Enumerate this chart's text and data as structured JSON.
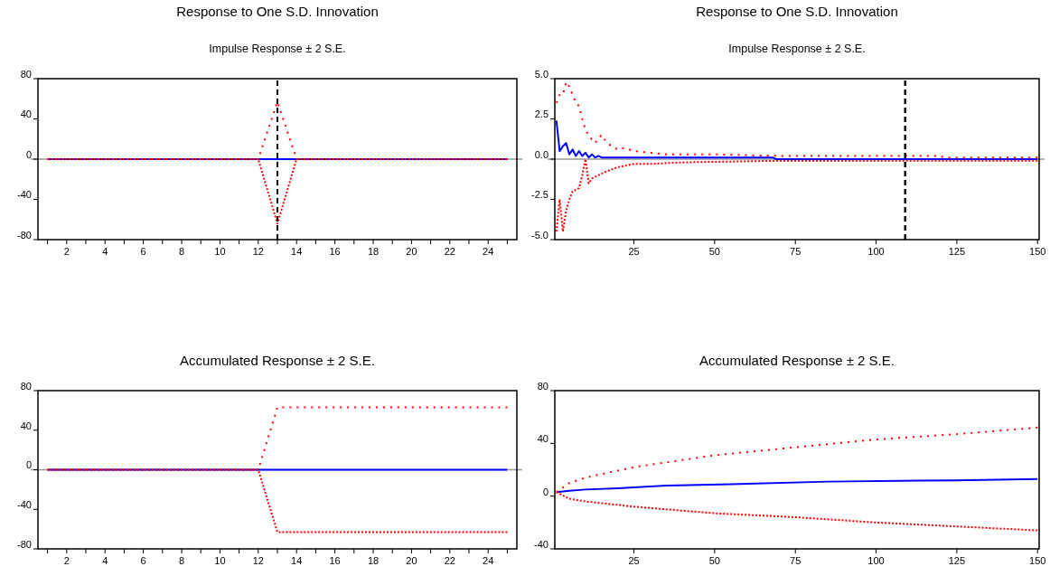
{
  "chart_data": [
    {
      "type": "line",
      "title": "Response to One S.D. Innovation",
      "subtitle": "Impulse Response ± 2 S.E.",
      "x": [
        1,
        2,
        3,
        4,
        5,
        6,
        7,
        8,
        9,
        10,
        11,
        12,
        13,
        14,
        15,
        16,
        17,
        18,
        19,
        20,
        21,
        22,
        23,
        24,
        25
      ],
      "xlim": [
        0.5,
        25.5
      ],
      "xticks": [
        {
          "value": 1,
          "label": null
        },
        2,
        {
          "value": 3,
          "label": null
        },
        4,
        {
          "value": 5,
          "label": null
        },
        6,
        {
          "value": 7,
          "label": null
        },
        8,
        {
          "value": 9,
          "label": null
        },
        10,
        {
          "value": 11,
          "label": null
        },
        12,
        {
          "value": 13,
          "label": null
        },
        14,
        {
          "value": 15,
          "label": null
        },
        16,
        {
          "value": 17,
          "label": null
        },
        18,
        {
          "value": 19,
          "label": null
        },
        20,
        {
          "value": 21,
          "label": null
        },
        22,
        {
          "value": 23,
          "label": null
        },
        24,
        {
          "value": 25,
          "label": null
        }
      ],
      "ylim": [
        -80,
        80
      ],
      "yticks": [
        -80,
        -40,
        0,
        40,
        80
      ],
      "series": [
        {
          "color": "#ff0000",
          "line_style": "dotted",
          "values": [
            0,
            0,
            0,
            0,
            0,
            0,
            0,
            0,
            0,
            0,
            0,
            0,
            57,
            0,
            0,
            0,
            0,
            0,
            0,
            0,
            0,
            0,
            0,
            0,
            0
          ]
        },
        {
          "color": "#ff0000",
          "line_style": "dotted",
          "values": [
            0,
            0,
            0,
            0,
            0,
            0,
            0,
            0,
            0,
            0,
            0,
            0,
            -64,
            0,
            0,
            0,
            0,
            0,
            0,
            0,
            0,
            0,
            0,
            0,
            0
          ]
        },
        {
          "color": "#0000ff",
          "line_style": "solid",
          "values": [
            0,
            0,
            0,
            0,
            0,
            0,
            0,
            0,
            0,
            0,
            0,
            0,
            0,
            0,
            0,
            0,
            0,
            0,
            0,
            0,
            0,
            0,
            0,
            0,
            0
          ]
        }
      ],
      "ref_lines": [
        {
          "axis": "y",
          "value": 0,
          "color": "#999999",
          "line_style": "solid"
        },
        {
          "axis": "x",
          "value": 13,
          "color": "#000000",
          "line_style": "dashed"
        }
      ]
    },
    {
      "type": "line",
      "title": "Response to One S.D. Innovation",
      "subtitle": "Impulse Response ± 2 S.E.",
      "xlim": [
        0.5,
        150.5
      ],
      "xticks": [
        25,
        50,
        75,
        100,
        125,
        150
      ],
      "ylim": [
        -5,
        5
      ],
      "yticks": [
        {
          "value": -5,
          "label": "-5.0"
        },
        {
          "value": -2.5,
          "label": "-2.5"
        },
        {
          "value": 0,
          "label": "0.0"
        },
        {
          "value": 2.5,
          "label": "2.5"
        },
        {
          "value": 5,
          "label": "5.0"
        }
      ],
      "series": [
        {
          "color": "#ff0000",
          "line_style": "dotted",
          "x": [
            1,
            2,
            3,
            4,
            5,
            6,
            7,
            8,
            9,
            10,
            11,
            12,
            13,
            14,
            15,
            16,
            17,
            18,
            20,
            22,
            25,
            30,
            35,
            50,
            70,
            120,
            121,
            150
          ],
          "values": [
            3.5,
            4.0,
            4.0,
            4.8,
            4.5,
            4.0,
            3.5,
            3.3,
            2.5,
            1.8,
            1.5,
            1.2,
            1.0,
            1.3,
            1.5,
            1.2,
            1.0,
            0.8,
            0.6,
            0.7,
            0.5,
            0.4,
            0.3,
            0.3,
            0.2,
            0.2,
            0.1,
            0.1
          ]
        },
        {
          "color": "#ff0000",
          "line_style": "dotted",
          "x": [
            1,
            2,
            3,
            4,
            5,
            6,
            8,
            9,
            10,
            11,
            12,
            14,
            16,
            20,
            25,
            30,
            40,
            70,
            150
          ],
          "values": [
            -4.5,
            -2.5,
            -4.5,
            -3.2,
            -2.5,
            -2.0,
            -1.8,
            -1.0,
            0,
            -1.5,
            -1.2,
            -1.0,
            -0.8,
            -0.5,
            -0.3,
            -0.3,
            -0.2,
            -0.1,
            -0.1
          ]
        },
        {
          "color": "#0000ff",
          "line_style": "solid",
          "x": [
            1,
            2,
            3,
            4,
            5,
            6,
            7,
            8,
            9,
            10,
            11,
            12,
            13,
            14,
            15,
            68,
            69,
            150
          ],
          "values": [
            2.4,
            0.5,
            0.8,
            1.0,
            0.3,
            0.6,
            0.2,
            0.5,
            0.2,
            0.4,
            0.1,
            0.3,
            0.1,
            0.2,
            0.1,
            0.1,
            0,
            0
          ]
        }
      ],
      "ref_lines": [
        {
          "axis": "y",
          "value": 0,
          "color": "#999999",
          "line_style": "solid"
        },
        {
          "axis": "x",
          "value": 109,
          "color": "#000000",
          "line_style": "dashed"
        }
      ]
    },
    {
      "type": "line",
      "title": "Accumulated Response ± 2 S.E.",
      "x": [
        1,
        2,
        3,
        4,
        5,
        6,
        7,
        8,
        9,
        10,
        11,
        12,
        13,
        14,
        15,
        16,
        17,
        18,
        19,
        20,
        21,
        22,
        23,
        24,
        25
      ],
      "xlim": [
        0.5,
        25.5
      ],
      "xticks": [
        {
          "value": 1,
          "label": null
        },
        2,
        {
          "value": 3,
          "label": null
        },
        4,
        {
          "value": 5,
          "label": null
        },
        6,
        {
          "value": 7,
          "label": null
        },
        8,
        {
          "value": 9,
          "label": null
        },
        10,
        {
          "value": 11,
          "label": null
        },
        12,
        {
          "value": 13,
          "label": null
        },
        14,
        {
          "value": 15,
          "label": null
        },
        16,
        {
          "value": 17,
          "label": null
        },
        18,
        {
          "value": 19,
          "label": null
        },
        20,
        {
          "value": 21,
          "label": null
        },
        22,
        {
          "value": 23,
          "label": null
        },
        24,
        {
          "value": 25,
          "label": null
        }
      ],
      "ylim": [
        -80,
        80
      ],
      "yticks": [
        -80,
        -40,
        0,
        40,
        80
      ],
      "series": [
        {
          "color": "#ff0000",
          "line_style": "dotted",
          "values": [
            0,
            0,
            0,
            0,
            0,
            0,
            0,
            0,
            0,
            0,
            0,
            0,
            63,
            63,
            63,
            63,
            63,
            63,
            63,
            63,
            63,
            63,
            63,
            63,
            63
          ]
        },
        {
          "color": "#ff0000",
          "line_style": "dotted",
          "values": [
            0,
            0,
            0,
            0,
            0,
            0,
            0,
            0,
            0,
            0,
            0,
            0,
            -63,
            -63,
            -63,
            -63,
            -63,
            -63,
            -63,
            -63,
            -63,
            -63,
            -63,
            -63,
            -63
          ]
        },
        {
          "color": "#0000ff",
          "line_style": "solid",
          "values": [
            0,
            0,
            0,
            0,
            0,
            0,
            0,
            0,
            0,
            0,
            0,
            0,
            0,
            0,
            0,
            0,
            0,
            0,
            0,
            0,
            0,
            0,
            0,
            0,
            0
          ]
        }
      ],
      "ref_lines": [
        {
          "axis": "y",
          "value": 0,
          "color": "#999999",
          "line_style": "solid"
        }
      ]
    },
    {
      "type": "line",
      "title": "Accumulated Response ± 2 S.E.",
      "xlim": [
        0.5,
        150.5
      ],
      "xticks": [
        25,
        50,
        75,
        100,
        125,
        150
      ],
      "ylim": [
        -40,
        80
      ],
      "yticks": [
        -40,
        0,
        40,
        80
      ],
      "series": [
        {
          "color": "#ff0000",
          "line_style": "dotted",
          "x": [
            1,
            5,
            10,
            25,
            50,
            75,
            100,
            125,
            150
          ],
          "values": [
            3,
            10,
            14,
            22,
            31,
            37,
            43,
            47,
            52
          ]
        },
        {
          "color": "#ff0000",
          "line_style": "dotted",
          "x": [
            1,
            5,
            10,
            25,
            50,
            75,
            100,
            125,
            150
          ],
          "values": [
            3,
            -2,
            -4,
            -8,
            -13,
            -16,
            -20,
            -23,
            -26
          ]
        },
        {
          "color": "#0000ff",
          "line_style": "solid",
          "x": [
            1,
            5,
            10,
            20,
            35,
            55,
            85,
            125,
            150
          ],
          "values": [
            3,
            4,
            5,
            6,
            8,
            9,
            11,
            12,
            13
          ]
        }
      ]
    }
  ]
}
